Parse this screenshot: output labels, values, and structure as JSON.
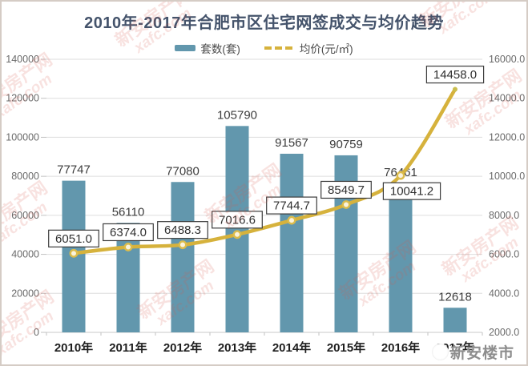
{
  "page": {
    "title": "2010年-2017年合肥市区住宅网签成交与均价趋势"
  },
  "watermark": {
    "brand_cn": "新安房产网",
    "brand_en": "xafc.com",
    "footer_logo": "新安楼市"
  },
  "chart_data": {
    "type": "bar+line",
    "title": "2010年-2017年合肥市区住宅网签成交与均价趋势",
    "categories": [
      "2010年",
      "2011年",
      "2012年",
      "2013年",
      "2014年",
      "2015年",
      "2016年",
      "2017年"
    ],
    "series": [
      {
        "name": "套数(套)",
        "type": "bar",
        "axis": "left",
        "color": "#6297ad",
        "values": [
          77747,
          56110,
          77080,
          105790,
          91567,
          90759,
          76461,
          12618
        ]
      },
      {
        "name": "均价(元/㎡)",
        "type": "line",
        "axis": "right",
        "color": "#d6b23c",
        "values": [
          6051.0,
          6374.0,
          6488.3,
          7016.6,
          7744.7,
          8549.7,
          10041.2,
          14458.0
        ],
        "point_labels": [
          "6051.0",
          "6374.0",
          "6488.3",
          "7016.6",
          "7744.7",
          "8549.7",
          "10041.2",
          "14458.0"
        ],
        "label_positions": [
          "above",
          "above",
          "above",
          "above",
          "above",
          "above",
          "below",
          "above"
        ]
      }
    ],
    "left_axis": {
      "min": 0,
      "max": 140000,
      "step": 20000,
      "tick_labels": [
        "0",
        "20000",
        "40000",
        "60000",
        "80000",
        "100000",
        "120000",
        "140000"
      ]
    },
    "right_axis": {
      "min": 2000,
      "max": 16000,
      "step": 2000,
      "tick_labels": [
        "2000.0",
        "4000.0",
        "6000.0",
        "8000.0",
        "10000.0",
        "12000.0",
        "14000.0",
        "16000.0"
      ]
    },
    "grid": true,
    "legend_position": "top"
  }
}
